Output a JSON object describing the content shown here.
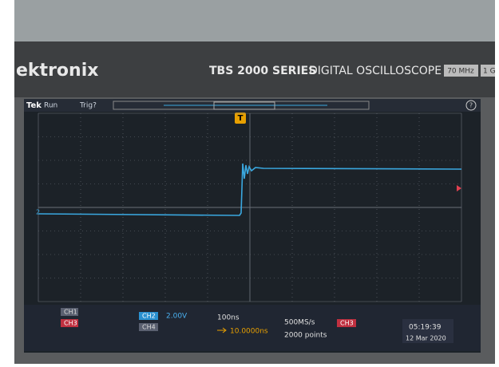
{
  "brand": "ektronix",
  "model": "TBS 2000 SERIES",
  "product": "DIGITAL OSCILLOSCOPE",
  "bandwidth": "70 MHz",
  "sample_badge": "1 G",
  "top_bar": {
    "logo": "Tek",
    "state": "Run",
    "trigger": "Trig?",
    "trigger_marker": "T",
    "help": "?"
  },
  "markers": {
    "channel": "2"
  },
  "status": {
    "ch1": "CH1",
    "ch3": "CH3",
    "ch2": "CH2",
    "ch2_scale": "2.00V",
    "ch4": "CH4",
    "timebase": "100ns",
    "trigger_delay": "10.0000ns",
    "sample_rate": "500MS/s",
    "record_length": "2000 points",
    "trigger_source": "CH3",
    "time": "05:19:39",
    "date": "12 Mar 2020"
  }
}
